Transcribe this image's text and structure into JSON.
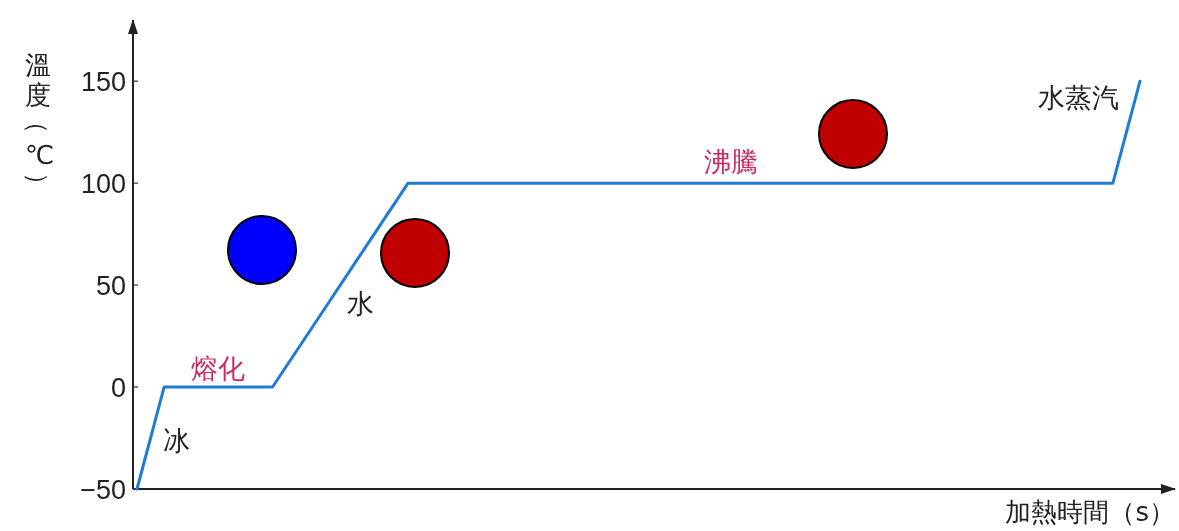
{
  "chart_data": {
    "type": "line",
    "xlabel": "加熱時間（s）",
    "ylabel": "溫度（℃）",
    "categories": [
      null,
      null,
      null,
      null,
      null,
      null,
      null,
      null,
      null,
      null,
      null,
      null,
      null,
      null,
      null,
      null,
      null,
      null,
      null,
      null,
      null,
      null,
      null,
      null,
      null,
      null,
      null,
      null,
      null,
      null,
      null,
      null,
      null,
      null,
      null,
      null,
      null,
      null
    ],
    "series": [
      {
        "color": "#1f7ad8",
        "values": [
          -50,
          0,
          0,
          0,
          0,
          0,
          20,
          40,
          60,
          80,
          100,
          100,
          100,
          100,
          100,
          100,
          100,
          100,
          100,
          100,
          100,
          100,
          100,
          100,
          100,
          100,
          100,
          100,
          100,
          100,
          100,
          100,
          100,
          100,
          100,
          100,
          100,
          150
        ]
      }
    ],
    "ylim": [
      -50,
      180
    ],
    "yticks": [
      {
        "value": -50,
        "label": "−50"
      },
      0,
      50,
      100,
      150
    ],
    "tick_labels": "y",
    "line_style": "solid",
    "annotations": [
      "冰",
      "熔化",
      "水",
      "沸騰",
      "水蒸汽"
    ]
  }
}
